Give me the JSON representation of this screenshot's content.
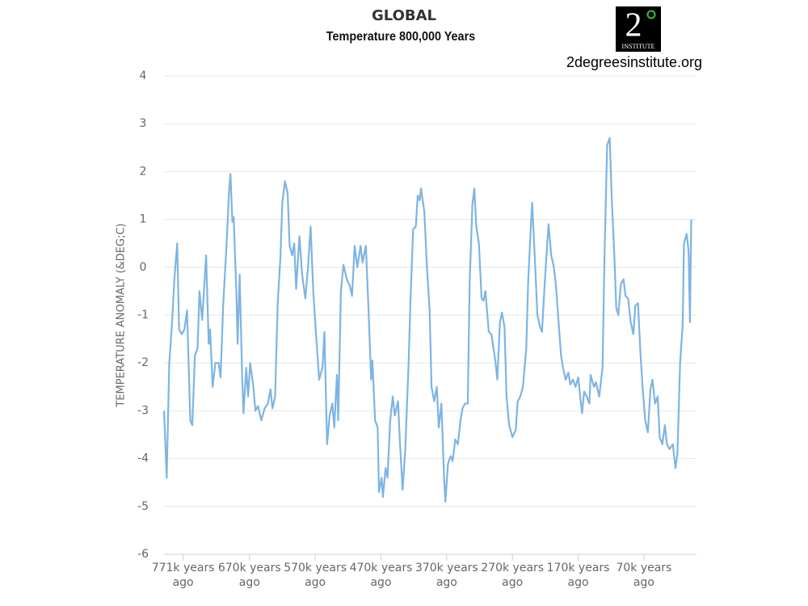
{
  "chart_data": {
    "type": "line",
    "title": "GLOBAL",
    "subtitle": "Temperature 800,000 Years",
    "logo_text": "INSTITUTE",
    "logo_number": "2",
    "website": "2degreesinstitute.org",
    "y_label": "TEMPERATURE ANOMALY (&DEG;C)",
    "color": "#7eb4e2",
    "grid": true,
    "xlim": [
      800,
      -10
    ],
    "ylim": [
      -6,
      4
    ],
    "yticks": [
      -6,
      -5,
      -4,
      -3,
      -2,
      -1,
      0,
      1,
      2,
      3,
      4
    ],
    "xticks": [
      {
        "value": 771,
        "label": "771k years ago"
      },
      {
        "value": 670,
        "label": "670k years ago"
      },
      {
        "value": 570,
        "label": "570k years ago"
      },
      {
        "value": 470,
        "label": "470k years ago"
      },
      {
        "value": 370,
        "label": "370k years ago"
      },
      {
        "value": 270,
        "label": "270k years ago"
      },
      {
        "value": 170,
        "label": "170k years ago"
      },
      {
        "value": 70,
        "label": "70k years ago"
      }
    ],
    "x": [
      800,
      796,
      792,
      788,
      784,
      780,
      777,
      773,
      769,
      765,
      760,
      757,
      753,
      749,
      746,
      742,
      736,
      732,
      730,
      726,
      722,
      717,
      714,
      710,
      705,
      701,
      699,
      696,
      694,
      690,
      688,
      685,
      681,
      679,
      675,
      672,
      669,
      664,
      661,
      657,
      652,
      647,
      642,
      638,
      635,
      631,
      627,
      623,
      620,
      616,
      612,
      609,
      605,
      602,
      599,
      594,
      590,
      585,
      581,
      577,
      573,
      569,
      564,
      559,
      556,
      552,
      548,
      544,
      541,
      537,
      535,
      531,
      527,
      522,
      517,
      514,
      510,
      506,
      501,
      498,
      493,
      489,
      485,
      483,
      479,
      475,
      473,
      469,
      467,
      463,
      460,
      456,
      452,
      449,
      444,
      441,
      437,
      433,
      428,
      425,
      421,
      417,
      414,
      411,
      409,
      404,
      400,
      396,
      393,
      389,
      385,
      382,
      378,
      374,
      372,
      368,
      364,
      361,
      357,
      353,
      349,
      346,
      342,
      338,
      335,
      331,
      328,
      325,
      321,
      317,
      314,
      311,
      306,
      302,
      296,
      293,
      289,
      286,
      282,
      279,
      275,
      270,
      265,
      262,
      258,
      254,
      249,
      246,
      242,
      240,
      236,
      232,
      228,
      225,
      221,
      217,
      215,
      211,
      207,
      204,
      200,
      196,
      193,
      189,
      185,
      182,
      178,
      174,
      170,
      167,
      164,
      161,
      157,
      153,
      151,
      146,
      143,
      138,
      133,
      130,
      126,
      122,
      119,
      115,
      112,
      109,
      105,
      101,
      98,
      94,
      90,
      86,
      83,
      79,
      75,
      72,
      68,
      64,
      60,
      57,
      53,
      49,
      46,
      42,
      38,
      35,
      31,
      26,
      22,
      19,
      15,
      11,
      9,
      5,
      2,
      0,
      -2
    ],
    "values": [
      -3.0,
      -4.4,
      -2.0,
      -1.2,
      -0.2,
      0.5,
      -1.3,
      -1.4,
      -1.3,
      -0.9,
      -3.2,
      -3.3,
      -1.85,
      -1.7,
      -0.5,
      -1.1,
      0.25,
      -1.6,
      -1.3,
      -2.5,
      -2.0,
      -2.0,
      -2.3,
      -0.8,
      0.45,
      1.6,
      1.95,
      0.95,
      1.05,
      -0.5,
      -1.6,
      -0.15,
      -2.35,
      -3.05,
      -2.1,
      -2.7,
      -2.0,
      -2.5,
      -3.0,
      -2.9,
      -3.2,
      -2.95,
      -2.85,
      -2.55,
      -2.95,
      -2.7,
      -0.75,
      0.2,
      1.35,
      1.8,
      1.55,
      0.45,
      0.25,
      0.5,
      -0.45,
      0.65,
      -0.15,
      -0.65,
      0.0,
      0.85,
      -0.5,
      -1.35,
      -2.35,
      -2.1,
      -1.35,
      -3.7,
      -3.1,
      -2.85,
      -3.35,
      -2.25,
      -3.2,
      -0.5,
      0.05,
      -0.25,
      -0.4,
      -0.6,
      0.45,
      0.0,
      0.45,
      0.1,
      0.45,
      -0.85,
      -2.35,
      -1.95,
      -3.2,
      -3.35,
      -4.7,
      -4.4,
      -4.8,
      -4.2,
      -4.4,
      -3.2,
      -2.7,
      -3.1,
      -2.8,
      -3.7,
      -4.65,
      -3.8,
      -2.0,
      -0.65,
      0.8,
      0.85,
      1.5,
      1.4,
      1.65,
      1.15,
      0.0,
      -0.9,
      -2.5,
      -2.8,
      -2.5,
      -3.35,
      -2.85,
      -4.4,
      -4.9,
      -4.1,
      -3.95,
      -4.05,
      -3.6,
      -3.7,
      -3.2,
      -2.95,
      -2.85,
      -2.85,
      -0.3,
      1.3,
      1.65,
      0.85,
      0.5,
      -0.65,
      -0.7,
      -0.5,
      -1.35,
      -1.4,
      -1.95,
      -2.35,
      -1.15,
      -0.95,
      -1.25,
      -2.7,
      -3.3,
      -3.55,
      -3.4,
      -2.8,
      -2.7,
      -2.5,
      -1.7,
      -0.3,
      0.85,
      1.35,
      0.2,
      -1.0,
      -1.25,
      -1.35,
      -0.35,
      0.5,
      0.9,
      0.25,
      0.0,
      -0.35,
      -1.1,
      -1.85,
      -2.1,
      -2.35,
      -2.2,
      -2.45,
      -2.35,
      -2.5,
      -2.3,
      -2.7,
      -3.05,
      -2.6,
      -2.7,
      -2.85,
      -2.25,
      -2.5,
      -2.4,
      -2.7,
      -2.1,
      0.2,
      2.55,
      2.7,
      1.5,
      0.25,
      -0.85,
      -1.0,
      -0.35,
      -0.25,
      -0.6,
      -0.65,
      -1.15,
      -1.4,
      -0.8,
      -0.75,
      -1.85,
      -2.5,
      -3.2,
      -3.45,
      -2.55,
      -2.35,
      -2.85,
      -2.7,
      -3.55,
      -3.7,
      -3.3,
      -3.7,
      -3.8,
      -3.7,
      -4.2,
      -3.9,
      -2.0,
      -1.2,
      0.5,
      0.7,
      0.35,
      -1.15,
      1.0
    ]
  }
}
